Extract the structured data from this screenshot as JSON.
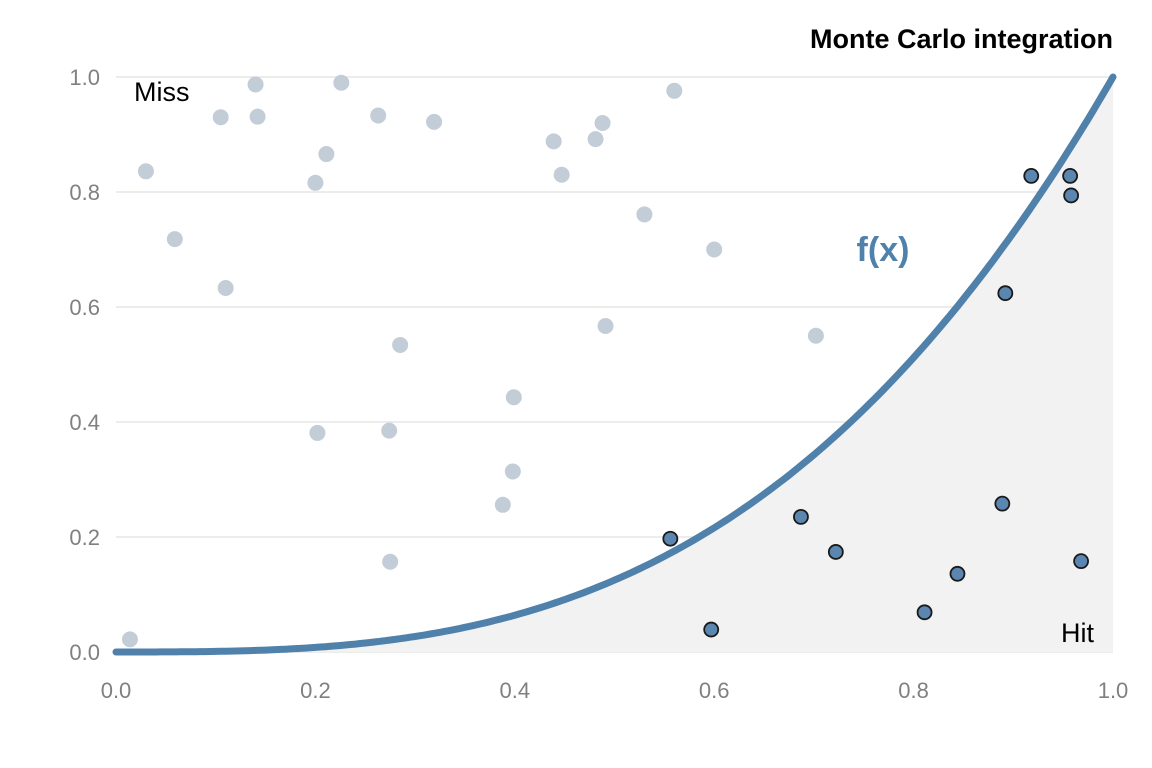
{
  "chart_data": {
    "type": "scatter",
    "title": "Monte Carlo integration",
    "xlabel": "",
    "ylabel": "",
    "xlim": [
      0,
      1
    ],
    "ylim": [
      0,
      1
    ],
    "x_ticks": [
      "0.0",
      "0.2",
      "0.4",
      "0.6",
      "0.8",
      "1.0"
    ],
    "y_ticks": [
      "0.0",
      "0.2",
      "0.4",
      "0.6",
      "0.8",
      "1.0"
    ],
    "grid": "horizontal",
    "curve": {
      "label": "f(x)",
      "function": "x^3",
      "color": "#5081ab"
    },
    "region_fill": "#f2f2f2",
    "annotations": {
      "miss": "Miss",
      "hit": "Hit"
    },
    "colors": {
      "miss": "#c3cdd8",
      "hit": "#5b86b0",
      "hit_stroke": "#1a1a1a"
    },
    "miss_points": [
      {
        "x": 0.014,
        "y": 0.022
      },
      {
        "x": 0.03,
        "y": 0.836
      },
      {
        "x": 0.059,
        "y": 0.718
      },
      {
        "x": 0.105,
        "y": 0.93
      },
      {
        "x": 0.11,
        "y": 0.633
      },
      {
        "x": 0.14,
        "y": 0.987
      },
      {
        "x": 0.142,
        "y": 0.931
      },
      {
        "x": 0.2,
        "y": 0.816
      },
      {
        "x": 0.202,
        "y": 0.381
      },
      {
        "x": 0.211,
        "y": 0.866
      },
      {
        "x": 0.226,
        "y": 0.99
      },
      {
        "x": 0.263,
        "y": 0.933
      },
      {
        "x": 0.274,
        "y": 0.385
      },
      {
        "x": 0.275,
        "y": 0.157
      },
      {
        "x": 0.285,
        "y": 0.534
      },
      {
        "x": 0.319,
        "y": 0.922
      },
      {
        "x": 0.388,
        "y": 0.256
      },
      {
        "x": 0.398,
        "y": 0.314
      },
      {
        "x": 0.399,
        "y": 0.443
      },
      {
        "x": 0.439,
        "y": 0.888
      },
      {
        "x": 0.447,
        "y": 0.83
      },
      {
        "x": 0.481,
        "y": 0.892
      },
      {
        "x": 0.488,
        "y": 0.92
      },
      {
        "x": 0.491,
        "y": 0.567
      },
      {
        "x": 0.53,
        "y": 0.761
      },
      {
        "x": 0.56,
        "y": 0.976
      },
      {
        "x": 0.6,
        "y": 0.7
      },
      {
        "x": 0.702,
        "y": 0.55
      }
    ],
    "hit_points": [
      {
        "x": 0.556,
        "y": 0.197
      },
      {
        "x": 0.597,
        "y": 0.039
      },
      {
        "x": 0.687,
        "y": 0.235
      },
      {
        "x": 0.722,
        "y": 0.174
      },
      {
        "x": 0.811,
        "y": 0.069
      },
      {
        "x": 0.844,
        "y": 0.136
      },
      {
        "x": 0.889,
        "y": 0.258
      },
      {
        "x": 0.892,
        "y": 0.624
      },
      {
        "x": 0.918,
        "y": 0.828
      },
      {
        "x": 0.957,
        "y": 0.828
      },
      {
        "x": 0.958,
        "y": 0.794
      },
      {
        "x": 0.968,
        "y": 0.158
      }
    ]
  }
}
